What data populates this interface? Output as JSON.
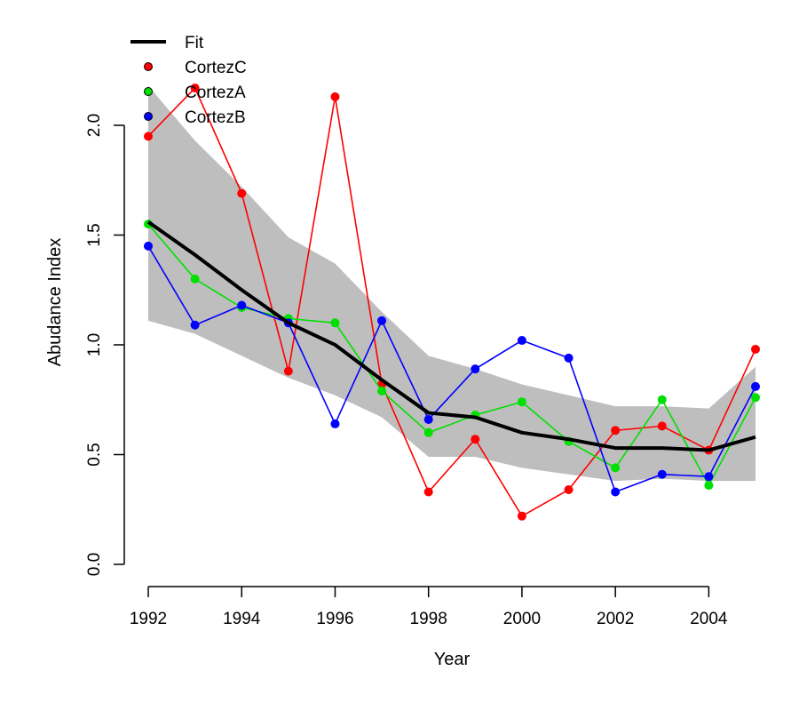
{
  "chart_data": {
    "type": "line",
    "title": "",
    "xlabel": "Year",
    "ylabel": "Abudance Index",
    "xlim": [
      1992,
      2005
    ],
    "ylim": [
      0,
      2.0
    ],
    "x_ticks": [
      "1992",
      "1994",
      "1996",
      "1998",
      "2000",
      "2002",
      "2004"
    ],
    "y_ticks": [
      "0.0",
      "0.5",
      "1.0",
      "1.5",
      "2.0"
    ],
    "x": [
      1992,
      1993,
      1994,
      1995,
      1996,
      1997,
      1998,
      1999,
      2000,
      2001,
      2002,
      2003,
      2004,
      2005
    ],
    "band": {
      "lower": [
        1.11,
        1.05,
        0.95,
        0.85,
        0.77,
        0.67,
        0.49,
        0.49,
        0.44,
        0.41,
        0.38,
        0.39,
        0.38,
        0.38
      ],
      "upper": [
        2.18,
        1.93,
        1.72,
        1.49,
        1.37,
        1.15,
        0.95,
        0.89,
        0.82,
        0.77,
        0.72,
        0.72,
        0.71,
        0.9
      ],
      "color": "#bebebe"
    },
    "fit": {
      "name": "Fit",
      "color": "#000000",
      "values": [
        1.56,
        1.41,
        1.25,
        1.1,
        1.0,
        0.84,
        0.69,
        0.67,
        0.6,
        0.57,
        0.53,
        0.53,
        0.52,
        0.58
      ]
    },
    "series": [
      {
        "name": "CortezC",
        "color": "#ff0000",
        "values": [
          1.95,
          2.17,
          1.69,
          0.88,
          2.13,
          0.82,
          0.33,
          0.57,
          0.22,
          0.34,
          0.61,
          0.63,
          0.52,
          0.98
        ]
      },
      {
        "name": "CortezA",
        "color": "#00e000",
        "values": [
          1.55,
          1.3,
          1.17,
          1.12,
          1.1,
          0.79,
          0.6,
          0.68,
          0.74,
          0.56,
          0.44,
          0.75,
          0.36,
          0.76
        ]
      },
      {
        "name": "CortezB",
        "color": "#0000ff",
        "values": [
          1.45,
          1.09,
          1.18,
          1.1,
          0.64,
          1.11,
          0.66,
          0.89,
          1.02,
          0.94,
          0.33,
          0.41,
          0.4,
          0.81
        ]
      }
    ],
    "legend": {
      "position": "top-left",
      "entries": [
        "Fit",
        "CortezC",
        "CortezA",
        "CortezB"
      ]
    }
  }
}
